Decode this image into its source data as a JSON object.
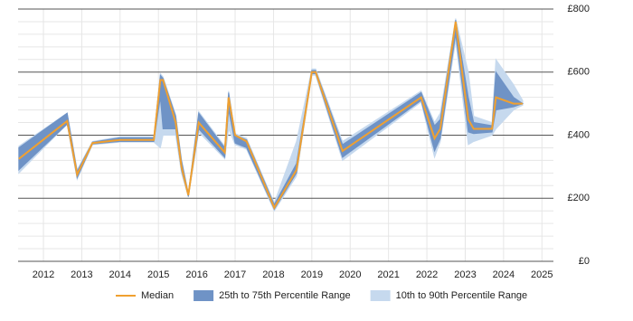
{
  "chart_data": {
    "type": "band-line",
    "x": [
      2011.36,
      2012.62,
      2012.88,
      2013.28,
      2014.0,
      2014.88,
      2015.05,
      2015.12,
      2015.45,
      2015.6,
      2015.78,
      2016.05,
      2016.73,
      2016.83,
      2017.0,
      2017.3,
      2018.02,
      2018.6,
      2019.0,
      2019.1,
      2019.8,
      2021.85,
      2022.2,
      2022.35,
      2022.75,
      2023.08,
      2023.22,
      2023.7,
      2023.8,
      2024.26,
      2024.5
    ],
    "series": [
      {
        "name": "10th to 90th Percentile Range",
        "color": "#c6d9ee",
        "kind": "band",
        "low": [
          280,
          435,
          260,
          370,
          378,
          378,
          360,
          400,
          400,
          280,
          205,
          410,
          325,
          420,
          370,
          355,
          160,
          270,
          590,
          590,
          320,
          505,
          330,
          380,
          700,
          370,
          380,
          400,
          420,
          480,
          495
        ],
        "high": [
          365,
          470,
          290,
          380,
          395,
          395,
          595,
          585,
          465,
          325,
          215,
          475,
          365,
          540,
          405,
          390,
          185,
          380,
          610,
          610,
          380,
          540,
          440,
          470,
          770,
          600,
          460,
          440,
          640,
          560,
          510
        ]
      },
      {
        "name": "25th to 75th Percentile Range",
        "color": "#6f93c6",
        "kind": "band",
        "low": [
          290,
          435,
          265,
          372,
          380,
          380,
          520,
          420,
          420,
          290,
          205,
          420,
          330,
          480,
          375,
          360,
          165,
          280,
          595,
          595,
          330,
          510,
          350,
          390,
          720,
          410,
          405,
          410,
          480,
          490,
          500
        ],
        "high": [
          360,
          470,
          285,
          378,
          392,
          392,
          590,
          580,
          460,
          320,
          215,
          470,
          360,
          535,
          400,
          385,
          180,
          310,
          605,
          605,
          370,
          535,
          430,
          450,
          765,
          520,
          440,
          430,
          600,
          520,
          500
        ]
      },
      {
        "name": "Median",
        "color": "#f0a030",
        "kind": "line",
        "values": [
          325,
          445,
          275,
          375,
          385,
          385,
          575,
          575,
          440,
          300,
          210,
          440,
          345,
          520,
          400,
          380,
          170,
          290,
          600,
          600,
          350,
          520,
          390,
          420,
          760,
          450,
          420,
          420,
          520,
          500,
          500
        ]
      }
    ],
    "xlim": [
      2011.34,
      2025.3
    ],
    "xticks": [
      2012,
      2013,
      2014,
      2015,
      2016,
      2017,
      2018,
      2019,
      2020,
      2021,
      2022,
      2023,
      2024,
      2025
    ],
    "ylim": [
      0,
      800
    ],
    "yticks": [
      {
        "value": 0,
        "label": "£0"
      },
      {
        "value": 200,
        "label": "£200"
      },
      {
        "value": 400,
        "label": "£400"
      },
      {
        "value": 600,
        "label": "£600"
      },
      {
        "value": 800,
        "label": "£800"
      }
    ],
    "yminorticks": [
      40,
      80,
      120,
      160,
      240,
      280,
      320,
      360,
      440,
      480,
      520,
      560,
      640,
      680,
      720,
      760
    ],
    "grid": true,
    "legend": [
      "Median",
      "25th to 75th Percentile Range",
      "10th to 90th Percentile Range"
    ],
    "legend_position": "bottom"
  }
}
